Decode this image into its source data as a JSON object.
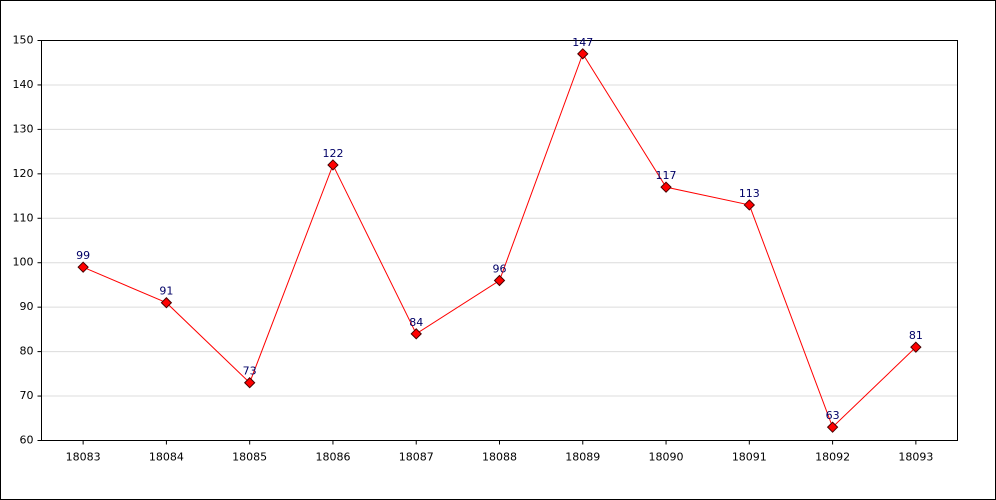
{
  "chart_data": {
    "type": "line",
    "categories": [
      "18083",
      "18084",
      "18085",
      "18086",
      "18087",
      "18088",
      "18089",
      "18090",
      "18091",
      "18092",
      "18093"
    ],
    "values": [
      99,
      91,
      73,
      122,
      84,
      96,
      147,
      117,
      113,
      63,
      81
    ],
    "color": "#ff0000",
    "ylim": [
      60,
      150
    ],
    "yticks": [
      60,
      70,
      80,
      90,
      100,
      110,
      120,
      130,
      140,
      150
    ],
    "grid": true
  }
}
